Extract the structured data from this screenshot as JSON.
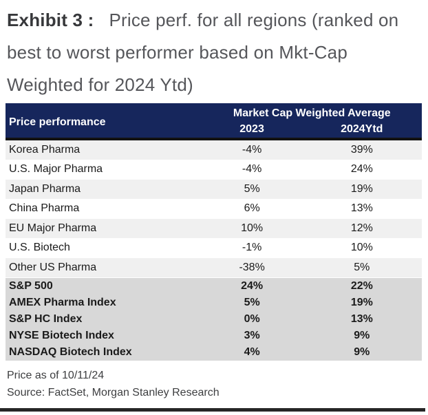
{
  "title": {
    "exhibit_label": "Exhibit 3 :",
    "description": "Price perf. for all regions (ranked on best to worst performer based on Mkt-Cap Weighted for 2024 Ytd)"
  },
  "table": {
    "col_name_header": "Price performance",
    "group_header": "Market Cap Weighted Average",
    "col_2023": "2023",
    "col_2024": "2024Ytd",
    "region_rows": [
      {
        "name": "Korea Pharma",
        "y2023": "-4%",
        "y2024": "39%"
      },
      {
        "name": "U.S. Major Pharma",
        "y2023": "-4%",
        "y2024": "24%"
      },
      {
        "name": "Japan Pharma",
        "y2023": "5%",
        "y2024": "19%"
      },
      {
        "name": "China Pharma",
        "y2023": "6%",
        "y2024": "13%"
      },
      {
        "name": "EU Major Pharma",
        "y2023": "10%",
        "y2024": "12%"
      },
      {
        "name": "U.S. Biotech",
        "y2023": "-1%",
        "y2024": "10%"
      },
      {
        "name": "Other US Pharma",
        "y2023": "-38%",
        "y2024": "5%"
      }
    ],
    "index_rows": [
      {
        "name": "S&P 500",
        "y2023": "24%",
        "y2024": "22%"
      },
      {
        "name": "AMEX Pharma Index",
        "y2023": "5%",
        "y2024": "19%"
      },
      {
        "name": "S&P HC Index",
        "y2023": "0%",
        "y2024": "13%"
      },
      {
        "name": "NYSE Biotech Index",
        "y2023": "3%",
        "y2024": "9%"
      },
      {
        "name": "NASDAQ Biotech Index",
        "y2023": "4%",
        "y2024": "9%"
      }
    ]
  },
  "footer": {
    "price_as_of": "Price as of 10/11/24",
    "source": "Source: FactSet, Morgan Stanley Research"
  },
  "colors": {
    "header_bg": "#16265c",
    "header_text": "#ffffff",
    "row_alt_bg": "#f0f0f0",
    "row_white_bg": "#ffffff",
    "index_row_bg": "#d8d8d8",
    "rule": "#121212"
  }
}
